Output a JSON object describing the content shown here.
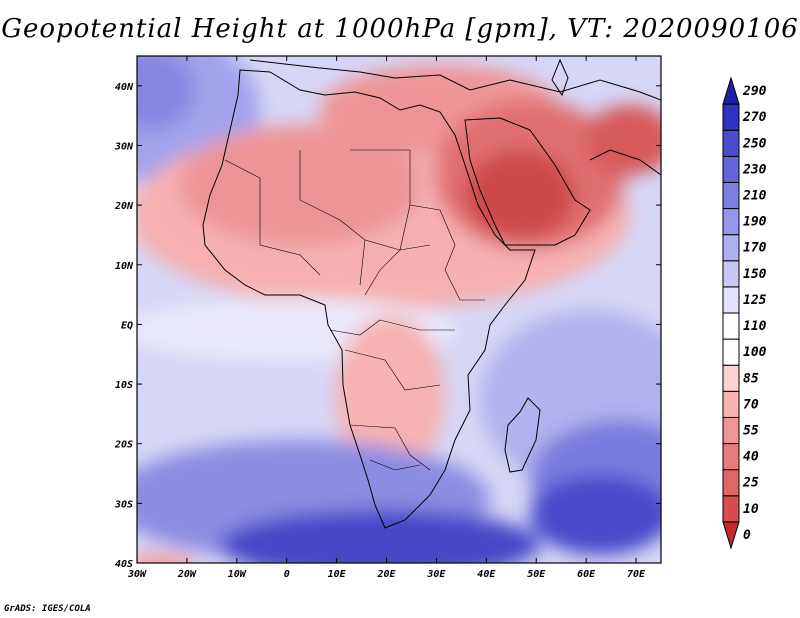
{
  "title": "Geopotential Height at 1000hPa [gpm], VT: 2020090106",
  "credit": "GrADS: IGES/COLA",
  "map": {
    "projection": "latlon",
    "lon_range": [
      -30,
      75
    ],
    "lat_range": [
      -40,
      45
    ],
    "lon_ticks": [
      "30W",
      "20W",
      "10W",
      "0",
      "10E",
      "20E",
      "30E",
      "40E",
      "50E",
      "60E",
      "70E"
    ],
    "lat_ticks": [
      "40S",
      "30S",
      "20S",
      "10S",
      "EQ",
      "10N",
      "20N",
      "30N",
      "40N"
    ],
    "field": "Geopotential Height at 1000hPa",
    "units": "gpm",
    "valid_time": "2020090106"
  },
  "colorbar": {
    "levels": [
      "0",
      "10",
      "25",
      "40",
      "55",
      "70",
      "85",
      "100",
      "110",
      "125",
      "150",
      "170",
      "190",
      "210",
      "230",
      "250",
      "270",
      "290"
    ],
    "colors": [
      "#c8282d",
      "#d74c4c",
      "#e06565",
      "#e87b7b",
      "#f09595",
      "#f6b3b3",
      "#fbd3d3",
      "#ffffff",
      "#ffffff",
      "#e2e2fb",
      "#c8c8f6",
      "#afaff2",
      "#9696ec",
      "#7d7de4",
      "#6464dc",
      "#4b4bd2",
      "#3232c2",
      "#1e1ea8"
    ]
  }
}
